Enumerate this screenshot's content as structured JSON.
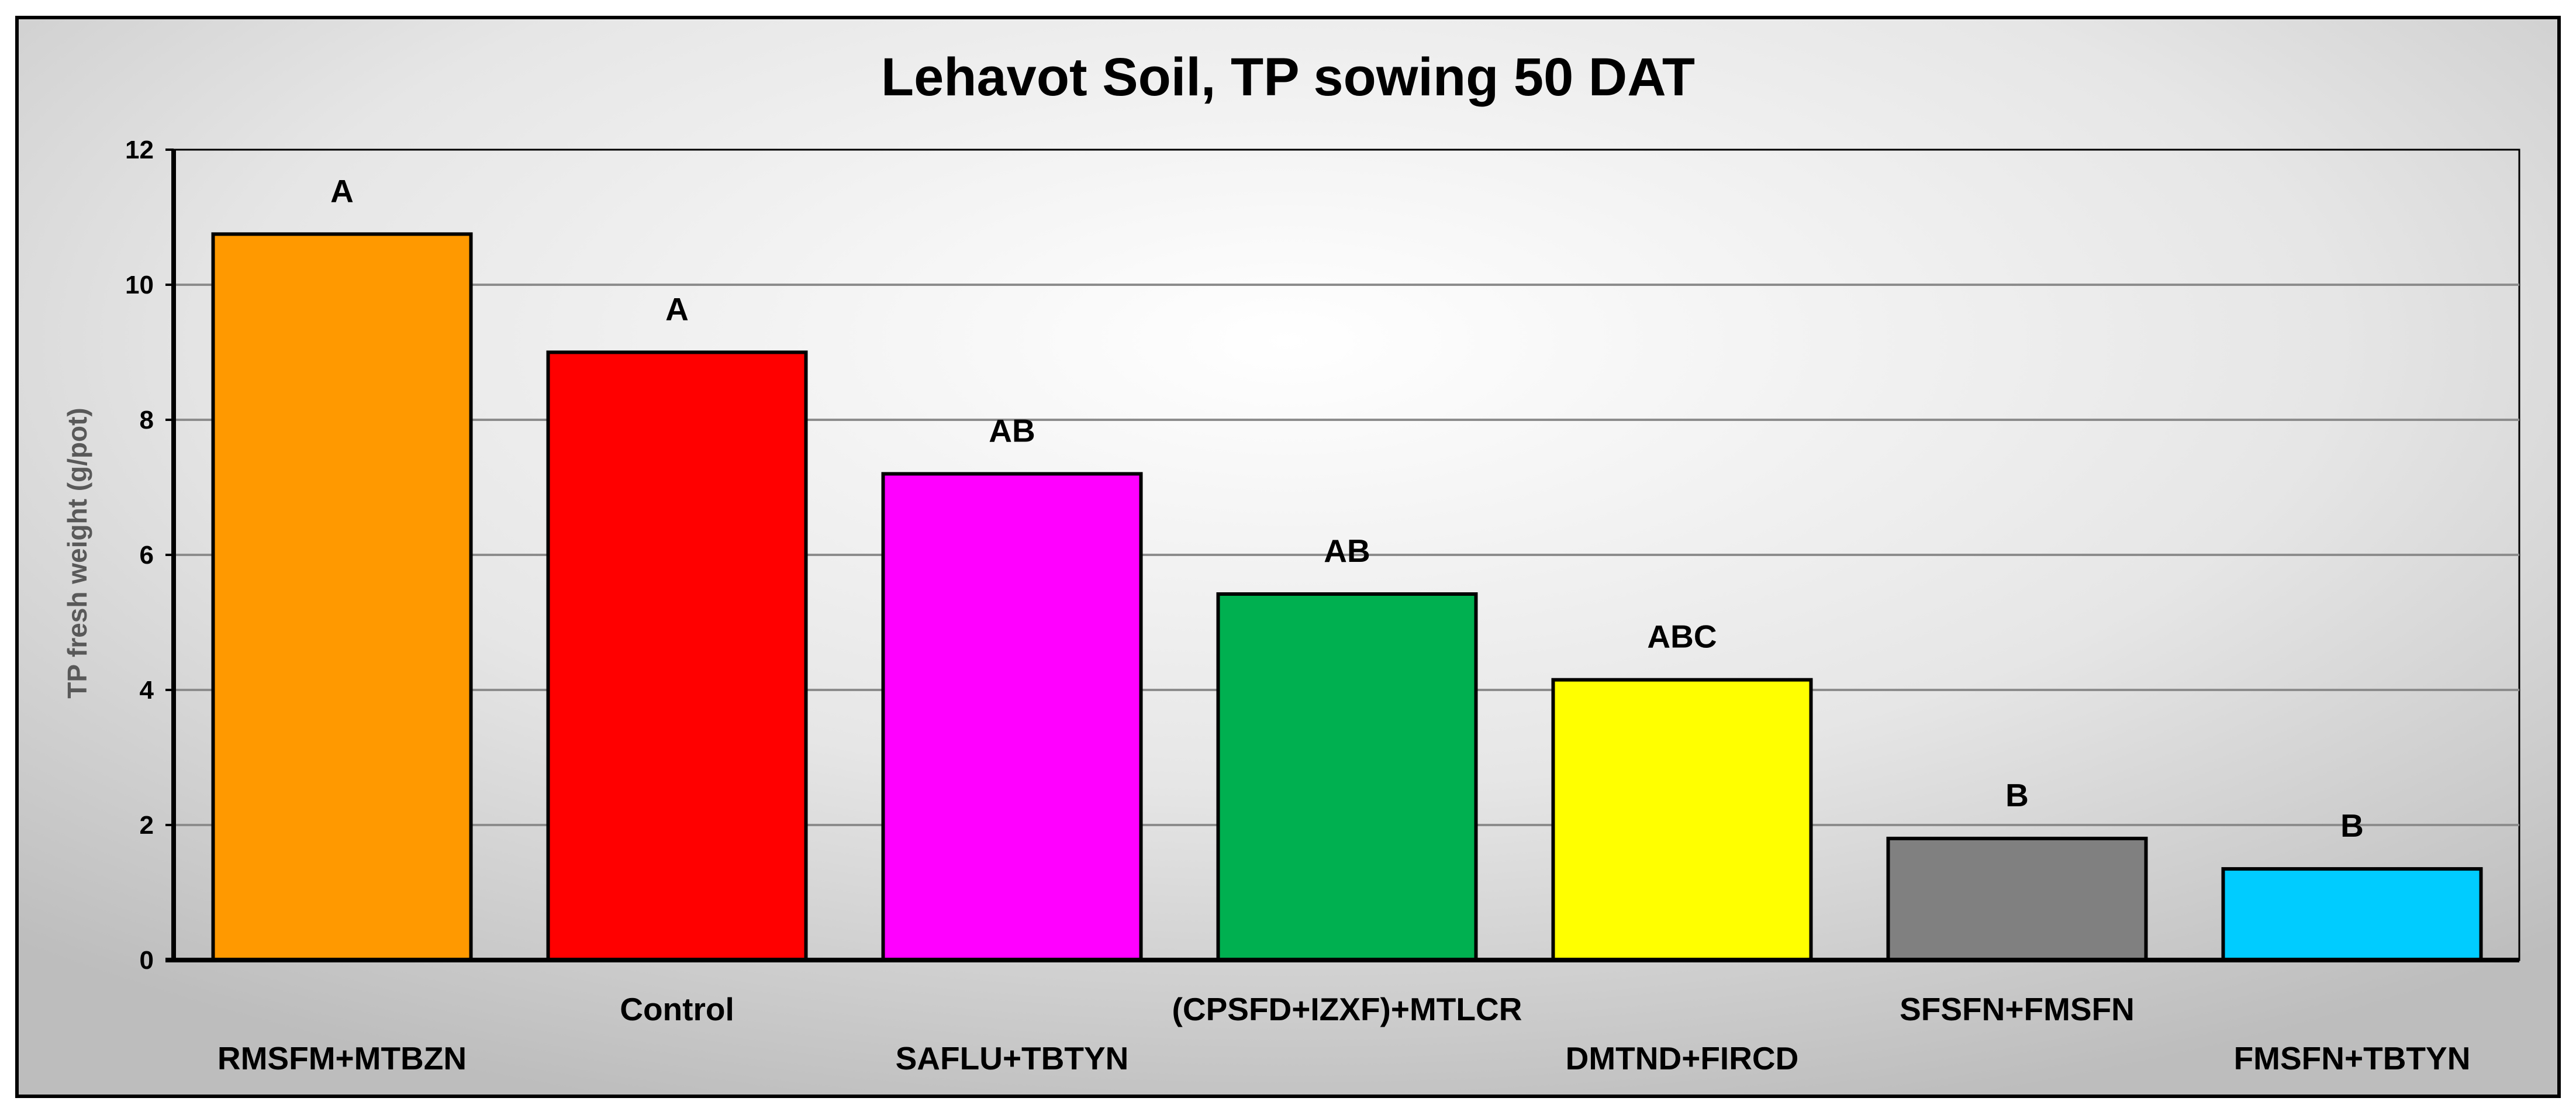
{
  "chart_data": {
    "type": "bar",
    "title": "Lehavot Soil, TP sowing 50 DAT",
    "xlabel": "",
    "ylabel": "TP fresh weight (g/pot)",
    "ylim": [
      0,
      12
    ],
    "yticks": [
      "0",
      "2",
      "4",
      "6",
      "8",
      "10",
      "12"
    ],
    "grid": true,
    "legend": "none",
    "categories": [
      "RMSFM+MTBZN",
      "Control",
      "SAFLU+TBTYN",
      "(CPSFD+IZXF)+MTLCR",
      "DMTND+FIRCD",
      "SFSFN+FMSFN",
      "FMSFN+TBTYN"
    ],
    "values": [
      10.75,
      9.0,
      7.2,
      5.42,
      4.15,
      1.8,
      1.35
    ],
    "significance_labels": [
      "A",
      "A",
      "AB",
      "AB",
      "ABC",
      "B",
      "B"
    ],
    "colors": [
      "#FF9900",
      "#FF0000",
      "#FF00FF",
      "#00B050",
      "#FFFF00",
      "#808080",
      "#00CCFF"
    ]
  }
}
